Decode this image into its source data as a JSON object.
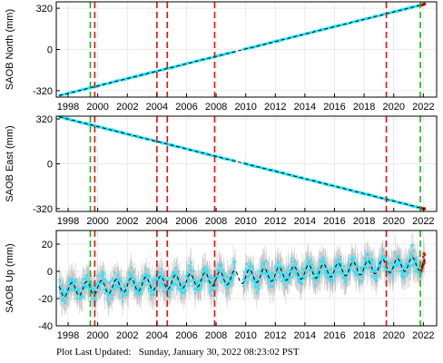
{
  "footer": {
    "label": "Plot Last Updated:",
    "timestamp": "Sunday, January 30, 2022 08:23:02 PST"
  },
  "colors": {
    "data": "#22e6ff",
    "error_bar": "#b4b4b4",
    "model": "#000000",
    "event_red": "#e01010",
    "event_green": "#18b418",
    "recent": "#dd1111"
  },
  "chart_data": [
    {
      "type": "scatter",
      "ylabel": "SAOB North (mm)",
      "xlim": [
        1997.2,
        2022.9
      ],
      "ylim": [
        -370,
        370
      ],
      "yticks": [
        320,
        0,
        -320
      ],
      "xticks": [
        1998,
        2000,
        2002,
        2004,
        2006,
        2008,
        2010,
        2012,
        2014,
        2016,
        2018,
        2020,
        2022
      ],
      "red_lines": [
        1999.8,
        2004.0,
        2004.7,
        2007.9,
        2019.5
      ],
      "green_lines": [
        1999.5,
        2021.8
      ],
      "gaps": [
        [
          2009.3,
          2009.8
        ]
      ],
      "trend": [
        [
          1997.4,
          -358
        ],
        [
          2022.1,
          352
        ]
      ],
      "data_range": [
        1997.4,
        2022.1
      ],
      "noise": 4,
      "err": 0,
      "grid": true
    },
    {
      "type": "scatter",
      "ylabel": "SAOB East (mm)",
      "xlim": [
        1997.2,
        2022.9
      ],
      "ylim": [
        -340,
        340
      ],
      "yticks": [
        320,
        0,
        -320
      ],
      "xticks": [
        1998,
        2000,
        2002,
        2004,
        2006,
        2008,
        2010,
        2012,
        2014,
        2016,
        2018,
        2020,
        2022
      ],
      "red_lines": [
        1999.8,
        2004.0,
        2004.7,
        2007.9,
        2019.5
      ],
      "green_lines": [
        1999.5,
        2021.8
      ],
      "gaps": [
        [
          2009.3,
          2009.8
        ]
      ],
      "trend": [
        [
          1997.4,
          335
        ],
        [
          2022.1,
          -322
        ]
      ],
      "data_range": [
        1997.4,
        2022.1
      ],
      "noise": 4,
      "err": 0,
      "grid": true
    },
    {
      "type": "scatter",
      "ylabel": "SAOB Up (mm)",
      "xlim": [
        1997.2,
        2022.9
      ],
      "ylim": [
        -40,
        30
      ],
      "yticks": [
        20,
        0,
        -20,
        -40
      ],
      "xticks": [
        1998,
        2000,
        2002,
        2004,
        2006,
        2008,
        2010,
        2012,
        2014,
        2016,
        2018,
        2020,
        2022
      ],
      "red_lines": [
        1999.8,
        2004.0,
        2004.7,
        2007.9,
        2019.5
      ],
      "green_lines": [
        1999.5,
        2021.8
      ],
      "gaps": [
        [
          2009.3,
          2009.8
        ]
      ],
      "trend": [
        [
          1997.4,
          -14
        ],
        [
          2022.1,
          6
        ]
      ],
      "data_range": [
        1997.4,
        2022.1
      ],
      "seasonal_amp": 5,
      "noise": 5,
      "err": 9,
      "grid": true
    }
  ]
}
